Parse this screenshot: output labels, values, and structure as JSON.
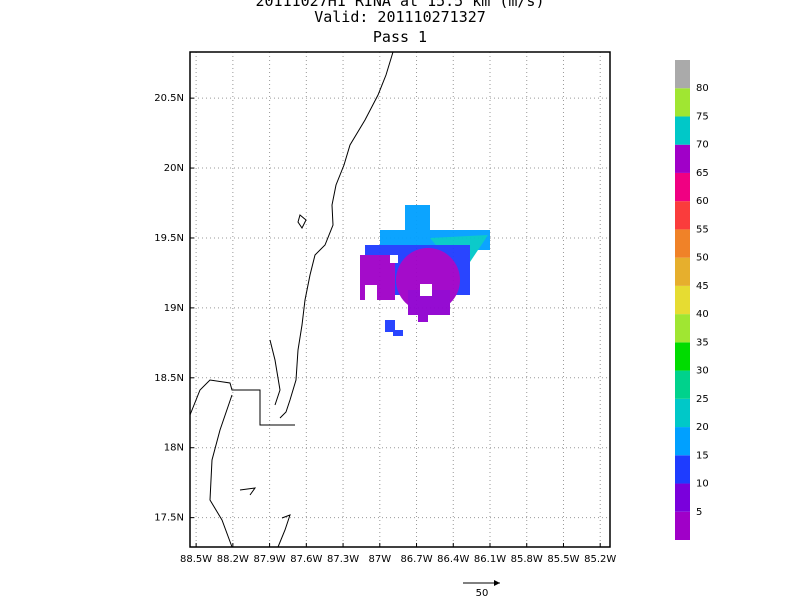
{
  "header": {
    "title": "20111027H1 RINA at 15.5 km (m/s)",
    "valid": "Valid: 201110271327",
    "pass": "Pass 1"
  },
  "map": {
    "xlim": [
      -88.55,
      -85.12
    ],
    "ylim": [
      17.29,
      20.83
    ],
    "grid": true,
    "xticks": [
      {
        "value": -88.5,
        "label": "88.5W"
      },
      {
        "value": -88.2,
        "label": "88.2W"
      },
      {
        "value": -87.9,
        "label": "87.9W"
      },
      {
        "value": -87.6,
        "label": "87.6W"
      },
      {
        "value": -87.3,
        "label": "87.3W"
      },
      {
        "value": -87,
        "label": "87W"
      },
      {
        "value": -86.7,
        "label": "86.7W"
      },
      {
        "value": -86.4,
        "label": "86.4W"
      },
      {
        "value": -86.1,
        "label": "86.1W"
      },
      {
        "value": -85.8,
        "label": "85.8W"
      },
      {
        "value": -85.5,
        "label": "85.5W"
      },
      {
        "value": -85.2,
        "label": "85.2W"
      }
    ],
    "yticks": [
      {
        "value": 17.5,
        "label": "17.5N"
      },
      {
        "value": 18,
        "label": "18N"
      },
      {
        "value": 18.5,
        "label": "18.5N"
      },
      {
        "value": 19,
        "label": "19N"
      },
      {
        "value": 19.5,
        "label": "19.5N"
      },
      {
        "value": 20,
        "label": "20N"
      },
      {
        "value": 20.5,
        "label": "20.5N"
      }
    ]
  },
  "colorbar": {
    "range": [
      0,
      85
    ],
    "colors": [
      "#a000c8",
      "#7a00dc",
      "#1e3cff",
      "#00a0ff",
      "#00c8c8",
      "#00d28c",
      "#00dc00",
      "#a0e632",
      "#e6dc32",
      "#e6af2d",
      "#f08228",
      "#fa3c3c",
      "#f00082",
      "#a000c8",
      "#00c8c8",
      "#a0e632",
      "#aaaaaa"
    ],
    "ticks": [
      5,
      10,
      15,
      20,
      25,
      30,
      35,
      40,
      45,
      50,
      55,
      60,
      65,
      70,
      75,
      80
    ]
  },
  "reference_vector": {
    "label": "50"
  }
}
